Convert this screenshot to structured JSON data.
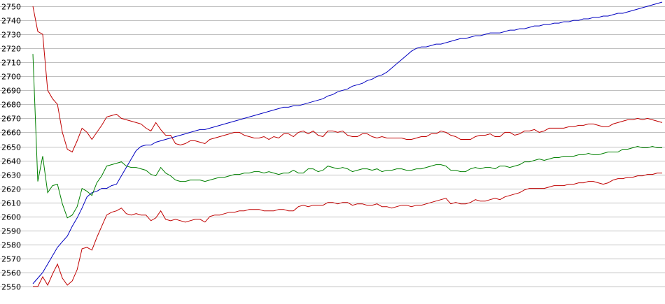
{
  "chart_data": {
    "type": "line",
    "title": "",
    "xlabel": "",
    "ylabel": "",
    "ylim": [
      2550,
      2750
    ],
    "y_ticks": [
      2550,
      2560,
      2570,
      2580,
      2590,
      2600,
      2610,
      2620,
      2630,
      2640,
      2650,
      2660,
      2670,
      2680,
      2690,
      2700,
      2710,
      2720,
      2730,
      2740,
      2750
    ],
    "y_tick_labels": [
      "2550",
      "2560",
      "2570",
      "2580",
      "2590",
      "2600",
      "2610",
      "2620",
      "2630",
      "2640",
      "2650",
      "2660",
      "2670",
      "2680",
      "2690",
      "2700",
      "2710",
      "2720",
      "2730",
      "2740",
      "2750"
    ],
    "grid": "horizontal",
    "legend": "none",
    "x_points": 129,
    "series": [
      {
        "color": "#0000c0",
        "values": [
          2552,
          2556,
          2560,
          2566,
          2572,
          2578,
          2582,
          2586,
          2593,
          2599,
          2606,
          2614,
          2617,
          2618,
          2620,
          2620,
          2622,
          2623,
          2629,
          2635,
          2641,
          2647,
          2650,
          2651,
          2651,
          2653,
          2654,
          2655,
          2656,
          2657,
          2658,
          2659,
          2660,
          2661,
          2662,
          2662,
          2663,
          2664,
          2665,
          2666,
          2667,
          2668,
          2669,
          2670,
          2671,
          2672,
          2673,
          2674,
          2675,
          2676,
          2677,
          2678,
          2678,
          2679,
          2679,
          2680,
          2681,
          2682,
          2683,
          2684,
          2686,
          2687,
          2689,
          2690,
          2691,
          2693,
          2694,
          2695,
          2697,
          2698,
          2700,
          2701,
          2703,
          2706,
          2709,
          2712,
          2715,
          2718,
          2720,
          2721,
          2721,
          2722,
          2723,
          2723,
          2724,
          2725,
          2726,
          2727,
          2727,
          2728,
          2729,
          2729,
          2730,
          2731,
          2731,
          2731,
          2732,
          2733,
          2733,
          2734,
          2734,
          2735,
          2736,
          2736,
          2737,
          2737,
          2738,
          2738,
          2739,
          2739,
          2740,
          2740,
          2741,
          2741,
          2742,
          2742,
          2743,
          2743,
          2744,
          2745,
          2745,
          2746,
          2747,
          2748,
          2749,
          2750,
          2751,
          2752,
          2753
        ]
      },
      {
        "color": "#c00000",
        "values": [
          2750,
          2732,
          2730,
          2690,
          2684,
          2680,
          2660,
          2648,
          2646,
          2654,
          2663,
          2660,
          2655,
          2660,
          2665,
          2671,
          2672,
          2673,
          2670,
          2669,
          2668,
          2667,
          2666,
          2663,
          2661,
          2667,
          2662,
          2658,
          2658,
          2652,
          2651,
          2652,
          2654,
          2654,
          2653,
          2652,
          2655,
          2656,
          2657,
          2658,
          2659,
          2660,
          2660,
          2658,
          2657,
          2656,
          2656,
          2657,
          2655,
          2657,
          2656,
          2659,
          2659,
          2657,
          2660,
          2661,
          2659,
          2661,
          2658,
          2657,
          2661,
          2661,
          2660,
          2661,
          2658,
          2657,
          2657,
          2659,
          2659,
          2657,
          2656,
          2657,
          2656,
          2656,
          2656,
          2656,
          2655,
          2655,
          2656,
          2657,
          2657,
          2659,
          2659,
          2661,
          2660,
          2658,
          2657,
          2655,
          2655,
          2655,
          2657,
          2658,
          2658,
          2659,
          2657,
          2657,
          2660,
          2660,
          2658,
          2659,
          2661,
          2661,
          2662,
          2660,
          2661,
          2663,
          2663,
          2663,
          2663,
          2664,
          2664,
          2665,
          2665,
          2666,
          2666,
          2665,
          2664,
          2664,
          2666,
          2667,
          2668,
          2669,
          2669,
          2670,
          2669,
          2670,
          2669,
          2668,
          2667
        ]
      },
      {
        "color": "#008000",
        "values": [
          2716,
          2625,
          2643,
          2617,
          2622,
          2623,
          2609,
          2599,
          2601,
          2607,
          2620,
          2618,
          2615,
          2624,
          2629,
          2636,
          2637,
          2638,
          2639,
          2636,
          2635,
          2635,
          2634,
          2633,
          2630,
          2629,
          2635,
          2631,
          2629,
          2626,
          2625,
          2625,
          2626,
          2626,
          2626,
          2625,
          2626,
          2627,
          2628,
          2628,
          2629,
          2630,
          2630,
          2631,
          2631,
          2632,
          2632,
          2631,
          2632,
          2631,
          2630,
          2631,
          2631,
          2633,
          2631,
          2631,
          2634,
          2634,
          2632,
          2633,
          2636,
          2635,
          2634,
          2635,
          2634,
          2632,
          2633,
          2634,
          2634,
          2633,
          2634,
          2632,
          2633,
          2633,
          2634,
          2634,
          2633,
          2633,
          2634,
          2634,
          2635,
          2636,
          2637,
          2637,
          2636,
          2633,
          2633,
          2632,
          2632,
          2634,
          2635,
          2634,
          2635,
          2635,
          2634,
          2636,
          2636,
          2635,
          2636,
          2637,
          2639,
          2639,
          2640,
          2641,
          2640,
          2641,
          2642,
          2642,
          2643,
          2643,
          2643,
          2644,
          2644,
          2645,
          2644,
          2644,
          2645,
          2646,
          2646,
          2646,
          2648,
          2648,
          2649,
          2650,
          2649,
          2649,
          2650,
          2649,
          2649
        ]
      },
      {
        "color": "#c00000",
        "values": [
          2550,
          2550,
          2557,
          2551,
          2559,
          2566,
          2556,
          2551,
          2554,
          2562,
          2577,
          2578,
          2576,
          2585,
          2593,
          2601,
          2603,
          2604,
          2606,
          2602,
          2601,
          2602,
          2601,
          2601,
          2597,
          2599,
          2604,
          2598,
          2597,
          2598,
          2597,
          2596,
          2597,
          2598,
          2598,
          2596,
          2600,
          2601,
          2601,
          2602,
          2603,
          2603,
          2604,
          2604,
          2605,
          2605,
          2605,
          2604,
          2604,
          2604,
          2605,
          2605,
          2604,
          2604,
          2607,
          2608,
          2607,
          2608,
          2608,
          2608,
          2610,
          2610,
          2609,
          2610,
          2610,
          2608,
          2609,
          2609,
          2608,
          2608,
          2609,
          2607,
          2607,
          2606,
          2607,
          2608,
          2608,
          2607,
          2608,
          2608,
          2609,
          2610,
          2611,
          2612,
          2613,
          2609,
          2610,
          2609,
          2609,
          2610,
          2612,
          2611,
          2611,
          2612,
          2613,
          2612,
          2614,
          2615,
          2616,
          2617,
          2619,
          2620,
          2620,
          2620,
          2620,
          2621,
          2622,
          2622,
          2622,
          2623,
          2623,
          2624,
          2624,
          2625,
          2625,
          2624,
          2623,
          2624,
          2626,
          2627,
          2627,
          2628,
          2628,
          2629,
          2629,
          2630,
          2630,
          2631,
          2631
        ]
      }
    ]
  }
}
